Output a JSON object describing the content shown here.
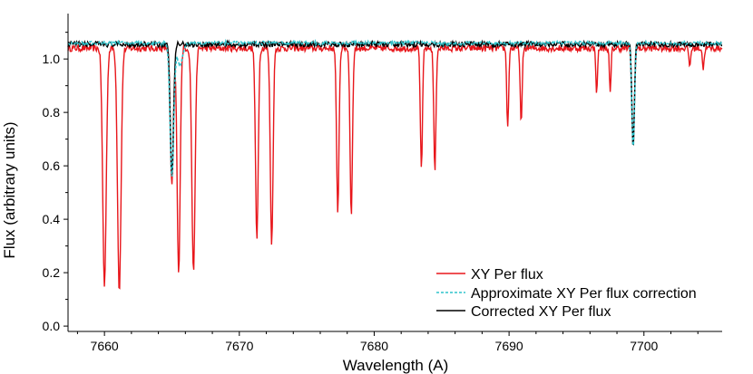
{
  "chart_data": {
    "type": "line",
    "xlabel": "Wavelength (A)",
    "ylabel": "Flux (arbitrary units)",
    "xlim": [
      7657.3,
      7705.8
    ],
    "ylim": [
      -0.02,
      1.17
    ],
    "xticks": [
      7660,
      7670,
      7680,
      7690,
      7700
    ],
    "xtick_labels": [
      "7660",
      "7670",
      "7680",
      "7690",
      "7700"
    ],
    "yticks": [
      0.0,
      0.2,
      0.4,
      0.6,
      0.8,
      1.0
    ],
    "ytick_labels": [
      "0.0",
      "0.2",
      "0.4",
      "0.6",
      "0.8",
      "1.0"
    ],
    "grid": false,
    "legend_position": "bottom-right",
    "series": [
      {
        "name": "XY Per flux",
        "color": "#e8161b",
        "dash": "solid",
        "continuum": 1.04,
        "lines": [
          {
            "center": 7660.0,
            "depth": 0.89,
            "width": 0.13
          },
          {
            "center": 7661.1,
            "depth": 0.91,
            "width": 0.13
          },
          {
            "center": 7665.0,
            "depth": 0.52,
            "width": 0.11
          },
          {
            "center": 7665.5,
            "depth": 0.85,
            "width": 0.11
          },
          {
            "center": 7666.6,
            "depth": 0.84,
            "width": 0.12
          },
          {
            "center": 7671.3,
            "depth": 0.72,
            "width": 0.1
          },
          {
            "center": 7672.4,
            "depth": 0.74,
            "width": 0.1
          },
          {
            "center": 7677.3,
            "depth": 0.61,
            "width": 0.09
          },
          {
            "center": 7678.3,
            "depth": 0.62,
            "width": 0.09
          },
          {
            "center": 7683.5,
            "depth": 0.45,
            "width": 0.08
          },
          {
            "center": 7684.5,
            "depth": 0.46,
            "width": 0.08
          },
          {
            "center": 7689.9,
            "depth": 0.3,
            "width": 0.07
          },
          {
            "center": 7690.9,
            "depth": 0.29,
            "width": 0.07
          },
          {
            "center": 7696.5,
            "depth": 0.17,
            "width": 0.06
          },
          {
            "center": 7697.5,
            "depth": 0.17,
            "width": 0.06
          },
          {
            "center": 7699.2,
            "depth": 0.37,
            "width": 0.09
          },
          {
            "center": 7703.4,
            "depth": 0.07,
            "width": 0.06
          },
          {
            "center": 7704.4,
            "depth": 0.08,
            "width": 0.06
          }
        ]
      },
      {
        "name": "Approximate XY Per flux correction",
        "color": "#2fc4cc",
        "dash": "dotted",
        "continuum": 1.06,
        "lines": [
          {
            "center": 7665.0,
            "depth": 0.5,
            "width": 0.14
          },
          {
            "center": 7665.6,
            "depth": 0.08,
            "width": 0.2
          },
          {
            "center": 7699.2,
            "depth": 0.39,
            "width": 0.1
          }
        ]
      },
      {
        "name": "Corrected XY Per flux",
        "color": "#000000",
        "dash": "solid",
        "continuum": 1.055,
        "lines": [
          {
            "center": 7665.0,
            "depth": 0.49,
            "width": 0.12
          },
          {
            "center": 7699.2,
            "depth": 0.39,
            "width": 0.09
          }
        ]
      }
    ]
  }
}
